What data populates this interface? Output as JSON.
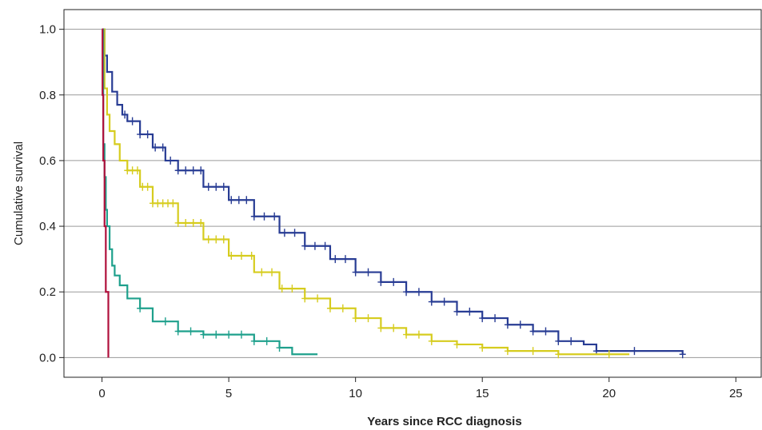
{
  "chart_data": {
    "type": "line",
    "step": true,
    "xlabel": "Years since RCC diagnosis",
    "ylabel": "Cumulative survival",
    "xlim": [
      -1.5,
      26
    ],
    "ylim": [
      -0.06,
      1.06
    ],
    "xticks": [
      0,
      5,
      10,
      15,
      20,
      25
    ],
    "yticks": [
      0.0,
      0.2,
      0.4,
      0.6,
      0.8,
      1.0
    ],
    "ytick_labels": [
      "0.0",
      "0.2",
      "0.4",
      "0.6",
      "0.8",
      "1.0"
    ],
    "grid": "horizontal",
    "censor_marker": "+",
    "series": [
      {
        "color": "#283c94",
        "x": [
          0,
          0.1,
          0.2,
          0.4,
          0.6,
          0.8,
          1,
          1.5,
          2,
          2.5,
          3,
          4,
          5,
          6,
          7,
          8,
          9,
          10,
          11,
          12,
          13,
          14,
          15,
          16,
          17,
          18,
          19,
          19.5,
          21,
          22.8,
          22.9
        ],
        "y": [
          1.0,
          0.92,
          0.87,
          0.81,
          0.77,
          0.74,
          0.72,
          0.68,
          0.64,
          0.6,
          0.57,
          0.52,
          0.48,
          0.43,
          0.38,
          0.34,
          0.3,
          0.26,
          0.23,
          0.2,
          0.17,
          0.14,
          0.12,
          0.1,
          0.08,
          0.05,
          0.04,
          0.02,
          0.02,
          0.02,
          0.01
        ],
        "censor_x": [
          0.9,
          1.2,
          1.5,
          1.8,
          2.1,
          2.4,
          2.7,
          3.0,
          3.3,
          3.6,
          3.9,
          4.2,
          4.5,
          4.8,
          5.1,
          5.4,
          5.7,
          6.0,
          6.4,
          6.8,
          7.2,
          7.6,
          8.0,
          8.4,
          8.8,
          9.2,
          9.6,
          10.0,
          10.5,
          11.0,
          11.5,
          12.0,
          12.5,
          13.0,
          13.5,
          14.0,
          14.5,
          15.0,
          15.5,
          16.0,
          16.5,
          17.0,
          17.5,
          18.0,
          18.5,
          19.5,
          21.0,
          22.9
        ]
      },
      {
        "color": "#d6cc1e",
        "x": [
          0,
          0.1,
          0.2,
          0.3,
          0.5,
          0.7,
          1,
          1.5,
          2,
          3,
          4,
          5,
          6,
          7,
          8,
          9,
          10,
          11,
          12,
          13,
          14,
          15,
          16,
          17,
          18,
          19,
          20,
          20.8
        ],
        "y": [
          1.0,
          0.82,
          0.74,
          0.69,
          0.65,
          0.6,
          0.57,
          0.52,
          0.47,
          0.41,
          0.36,
          0.31,
          0.26,
          0.21,
          0.18,
          0.15,
          0.12,
          0.09,
          0.07,
          0.05,
          0.04,
          0.03,
          0.02,
          0.02,
          0.01,
          0.01,
          0.01,
          0.01
        ],
        "censor_x": [
          1.0,
          1.2,
          1.4,
          1.6,
          1.8,
          2.0,
          2.2,
          2.4,
          2.6,
          2.8,
          3.0,
          3.3,
          3.6,
          3.9,
          4.2,
          4.5,
          4.8,
          5.1,
          5.5,
          5.9,
          6.3,
          6.7,
          7.1,
          7.5,
          8.0,
          8.5,
          9.0,
          9.5,
          10.0,
          10.5,
          11.0,
          11.5,
          12.0,
          12.5,
          13.0,
          14.0,
          15.0,
          16.0,
          17.0,
          18.0,
          20.0
        ]
      },
      {
        "color": "#1ea08c",
        "x": [
          0,
          0.05,
          0.1,
          0.15,
          0.2,
          0.3,
          0.4,
          0.5,
          0.7,
          1,
          1.5,
          2,
          3,
          4,
          5,
          5.5,
          6,
          7,
          7.5,
          8.5
        ],
        "y": [
          1.0,
          0.65,
          0.55,
          0.45,
          0.4,
          0.33,
          0.28,
          0.25,
          0.22,
          0.18,
          0.15,
          0.11,
          0.08,
          0.07,
          0.07,
          0.07,
          0.05,
          0.03,
          0.01,
          0.01
        ],
        "censor_x": [
          1.5,
          2.5,
          3.0,
          3.5,
          4.0,
          4.5,
          5.0,
          5.5,
          6.0,
          6.5,
          7.0
        ]
      },
      {
        "color": "#b0103c",
        "x": [
          0,
          0.02,
          0.05,
          0.1,
          0.15,
          0.2,
          0.25
        ],
        "y": [
          1.0,
          0.8,
          0.6,
          0.4,
          0.2,
          0.2,
          0.0
        ],
        "censor_x": []
      }
    ]
  }
}
